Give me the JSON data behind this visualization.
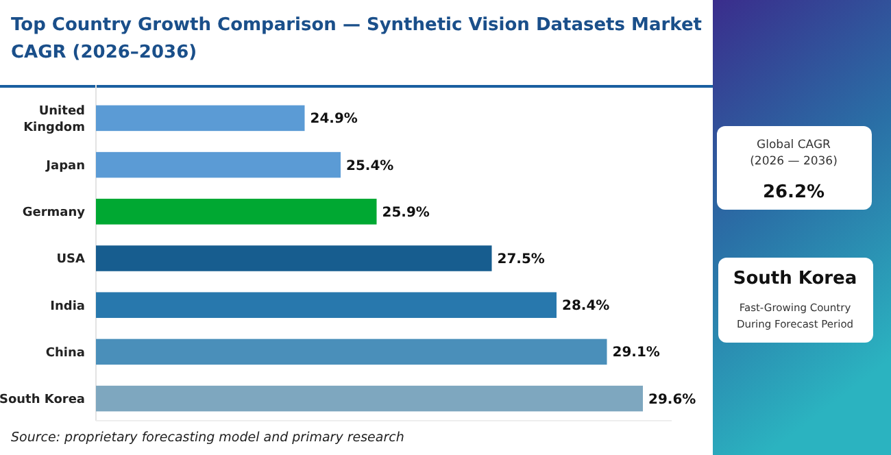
{
  "chart_data": {
    "type": "bar",
    "orientation": "horizontal",
    "title": "Top Country Growth Comparison — Synthetic Vision Datasets Market CAGR (2026–2036)",
    "categories": [
      "United Kingdom",
      "Japan",
      "Germany",
      "USA",
      "India",
      "China",
      "South Korea"
    ],
    "values": [
      24.9,
      25.4,
      25.9,
      27.5,
      28.4,
      29.1,
      29.6
    ],
    "colors": [
      "#5b9bd5",
      "#5b9bd5",
      "#00a832",
      "#175d8f",
      "#2878ad",
      "#4a8fba",
      "#7ea7bf"
    ],
    "value_labels": [
      "24.9%",
      "25.4%",
      "25.9%",
      "27.5%",
      "28.4%",
      "29.1%",
      "29.6%"
    ],
    "xlim": [
      22,
      30
    ],
    "tick_labels": "y",
    "annotations": [
      "Source: proprietary forecasting model and primary research",
      "Global CAGR (2026 — 2036)",
      "26.2%",
      "South Korea",
      "Fast-Growing Country During Forecast Period"
    ]
  }
}
